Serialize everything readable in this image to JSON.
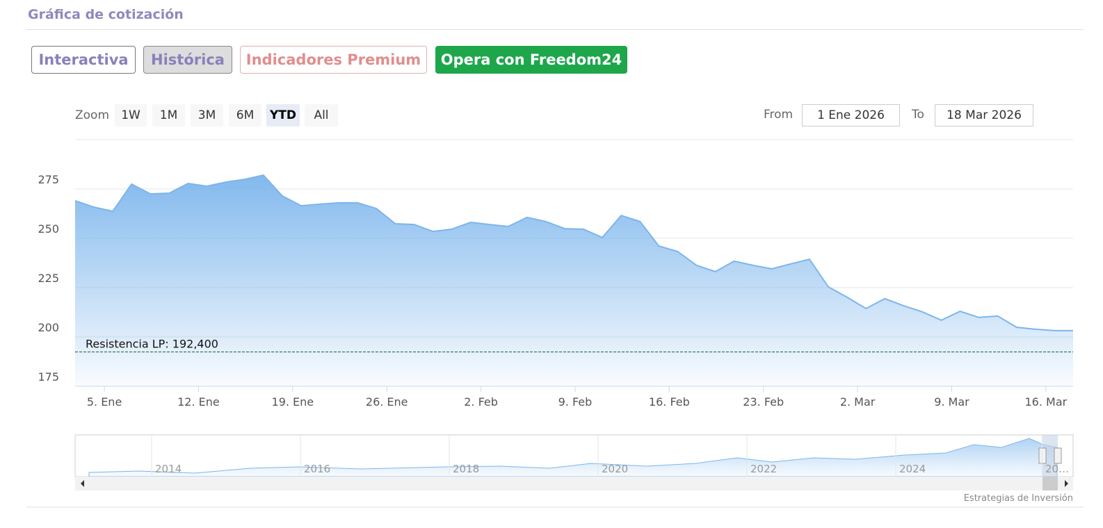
{
  "header": {
    "title": "Gráfica de cotización"
  },
  "tabs": {
    "items": [
      "Interactiva",
      "Histórica",
      "Indicadores Premium",
      "Opera con Freedom24"
    ],
    "active_index": 1
  },
  "zoom": {
    "label": "Zoom",
    "buttons": [
      "1W",
      "1M",
      "3M",
      "6M",
      "YTD",
      "All"
    ],
    "active_index": 4
  },
  "range": {
    "from_label": "From",
    "from": "1 Ene 2026",
    "to_label": "To",
    "to": "18 Mar 2026"
  },
  "chart_data": {
    "type": "area",
    "color": "#7cb5ec",
    "grid": true,
    "categories": [
      null,
      "5. Ene",
      null,
      null,
      null,
      null,
      "12. Ene",
      null,
      null,
      null,
      null,
      "19. Ene",
      null,
      null,
      null,
      null,
      "26. Ene",
      null,
      null,
      null,
      null,
      "2. Feb",
      null,
      null,
      null,
      null,
      "9. Feb",
      null,
      null,
      null,
      null,
      "16. Feb",
      null,
      null,
      null,
      null,
      "23. Feb",
      null,
      null,
      null,
      null,
      "2. Mar",
      null,
      null,
      null,
      null,
      "9. Mar",
      null,
      null,
      null,
      null,
      "16. Mar",
      null,
      null
    ],
    "values": [
      269.0,
      265.8,
      263.7,
      277.5,
      272.5,
      272.9,
      277.8,
      276.4,
      278.5,
      279.9,
      282.0,
      271.5,
      266.5,
      267.3,
      268.0,
      268.0,
      265.1,
      257.4,
      257.0,
      253.5,
      254.6,
      258.1,
      257.0,
      256.0,
      260.6,
      258.5,
      254.9,
      254.6,
      250.4,
      261.6,
      258.5,
      246.1,
      243.3,
      236.3,
      233.1,
      238.4,
      236.3,
      234.5,
      237.0,
      239.4,
      225.4,
      220.1,
      214.4,
      219.4,
      215.8,
      212.7,
      208.5,
      213.0,
      209.9,
      210.6,
      204.9,
      203.9,
      203.2,
      203.2
    ],
    "ylim": [
      175,
      300
    ],
    "yticks": [
      175,
      200,
      225,
      250,
      275
    ],
    "annotations": [
      {
        "label": "Resistencia LP: 192,400",
        "value": 192.4
      }
    ],
    "navigator_labels": [
      "2014",
      "2016",
      "2018",
      "2020",
      "2022",
      "2024",
      "20…"
    ]
  },
  "footer": {
    "credit": "Estrategias de Inversión"
  }
}
